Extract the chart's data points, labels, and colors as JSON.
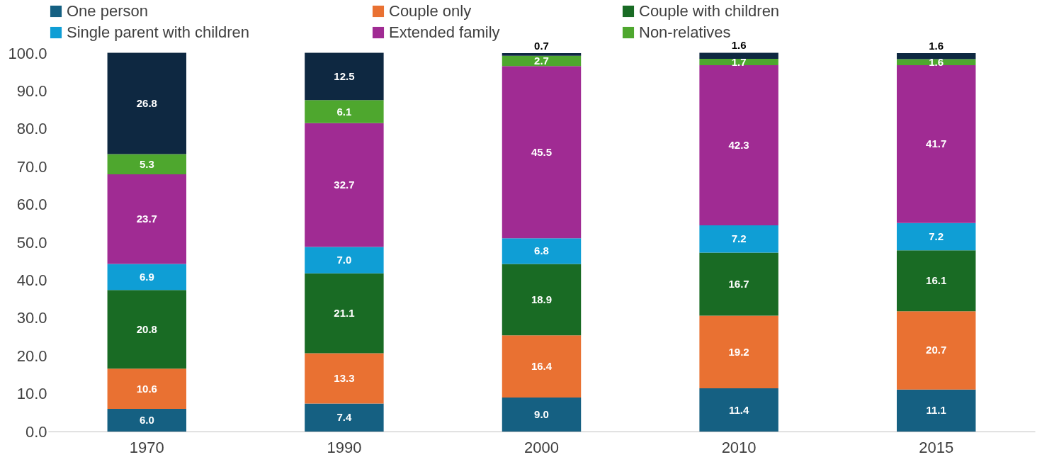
{
  "chart_data": {
    "type": "bar",
    "stacked": true,
    "categories": [
      "1970",
      "1990",
      "2000",
      "2010",
      "2015"
    ],
    "series": [
      {
        "name": "One person",
        "color": "#156082",
        "values": [
          6.0,
          7.4,
          9.0,
          11.4,
          11.1
        ],
        "value_labels": [
          "6.0",
          "7.4",
          "9.0",
          "11.4",
          "11.1"
        ]
      },
      {
        "name": "Couple only",
        "color": "#e97132",
        "values": [
          10.6,
          13.3,
          16.4,
          19.2,
          20.7
        ],
        "value_labels": [
          "10.6",
          "13.3",
          "16.4",
          "19.2",
          "20.7"
        ]
      },
      {
        "name": "Couple with children",
        "color": "#196b24",
        "values": [
          20.8,
          21.1,
          18.9,
          16.7,
          16.1
        ],
        "value_labels": [
          "20.8",
          "21.1",
          "18.9",
          "16.7",
          "16.1"
        ]
      },
      {
        "name": "Single parent with children",
        "color": "#0f9ed5",
        "values": [
          6.9,
          7.0,
          6.8,
          7.2,
          7.2
        ],
        "value_labels": [
          "6.9",
          "7.0",
          "6.8",
          "7.2",
          "7.2"
        ]
      },
      {
        "name": "Extended family",
        "color": "#a02b93",
        "values": [
          23.7,
          32.7,
          45.5,
          42.3,
          41.7
        ],
        "value_labels": [
          "23.7",
          "32.7",
          "45.5",
          "42.3",
          "41.7"
        ]
      },
      {
        "name": "Non-relatives",
        "color": "#4ea72e",
        "values": [
          5.3,
          6.1,
          2.7,
          1.7,
          1.6
        ],
        "value_labels": [
          "5.3",
          "6.1",
          "2.7",
          "1.7",
          "1.6"
        ]
      },
      {
        "color": "#0e2841",
        "values": [
          26.8,
          12.5,
          0.7,
          1.6,
          1.6
        ],
        "value_labels": [
          "26.8",
          "12.5",
          "0.7",
          "1.6",
          "1.6"
        ]
      }
    ],
    "ylim": [
      0,
      100
    ],
    "yticks": [
      {
        "value": 0,
        "label": "0.0"
      },
      {
        "value": 10,
        "label": "10.0"
      },
      {
        "value": 20,
        "label": "20.0"
      },
      {
        "value": 30,
        "label": "30.0"
      },
      {
        "value": 40,
        "label": "40.0"
      },
      {
        "value": 50,
        "label": "50.0"
      },
      {
        "value": 60,
        "label": "60.0"
      },
      {
        "value": 70,
        "label": "70.0"
      },
      {
        "value": 80,
        "label": "80.0"
      },
      {
        "value": 90,
        "label": "90.0"
      },
      {
        "value": 100,
        "label": "100.0"
      }
    ],
    "grid": false,
    "legend": "top"
  }
}
